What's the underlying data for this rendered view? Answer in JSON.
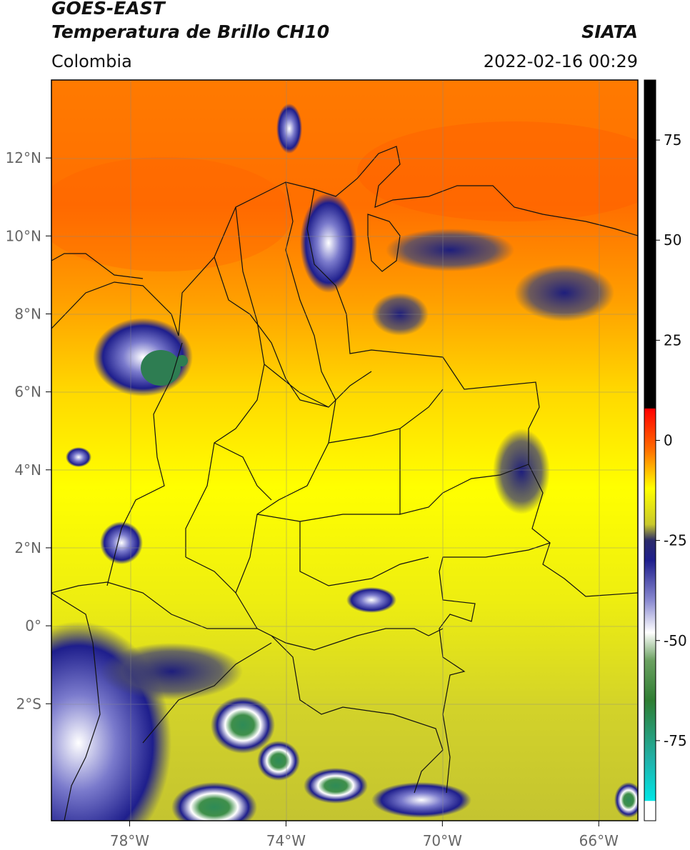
{
  "header": {
    "satellite": "GOES-EAST",
    "product": "Temperatura de Brillo CH10",
    "source": "SIATA",
    "region": "Colombia",
    "timestamp": "2022-02-16 00:29"
  },
  "map": {
    "lon_labels": [
      "78°W",
      "74°W",
      "70°W",
      "66°W"
    ],
    "lat_labels": [
      "12°N",
      "10°N",
      "8°N",
      "6°N",
      "4°N",
      "2°N",
      "0°",
      "2°S"
    ],
    "lon_values": [
      -78,
      -74,
      -70,
      -66
    ],
    "lat_values": [
      12,
      10,
      8,
      6,
      4,
      2,
      0,
      -2
    ],
    "extent": {
      "lon_min": -80,
      "lon_max": -65,
      "lat_min": -5,
      "lat_max": 14
    }
  },
  "colorbar": {
    "tick_labels": [
      "75",
      "50",
      "25",
      "0",
      "-25",
      "-50",
      "-75"
    ],
    "tick_values": [
      75,
      50,
      25,
      0,
      -25,
      -50,
      -75
    ],
    "range": [
      -95,
      90
    ],
    "stops": [
      {
        "v": 90,
        "c": "#000000"
      },
      {
        "v": 8,
        "c": "#000000"
      },
      {
        "v": 7.9,
        "c": "#ff0000"
      },
      {
        "v": -2,
        "c": "#ff6a00"
      },
      {
        "v": -12,
        "c": "#ffff00"
      },
      {
        "v": -21,
        "c": "#c8c82c"
      },
      {
        "v": -25,
        "c": "#2a2a6a"
      },
      {
        "v": -30,
        "c": "#1e1e8c"
      },
      {
        "v": -40,
        "c": "#8a8ad0"
      },
      {
        "v": -48,
        "c": "#ffffff"
      },
      {
        "v": -55,
        "c": "#6aa060"
      },
      {
        "v": -65,
        "c": "#2e7d32"
      },
      {
        "v": -80,
        "c": "#20b2aa"
      },
      {
        "v": -90,
        "c": "#00e5e5"
      },
      {
        "v": -90.1,
        "c": "#ffffff"
      },
      {
        "v": -95,
        "c": "#ffffff"
      }
    ]
  }
}
